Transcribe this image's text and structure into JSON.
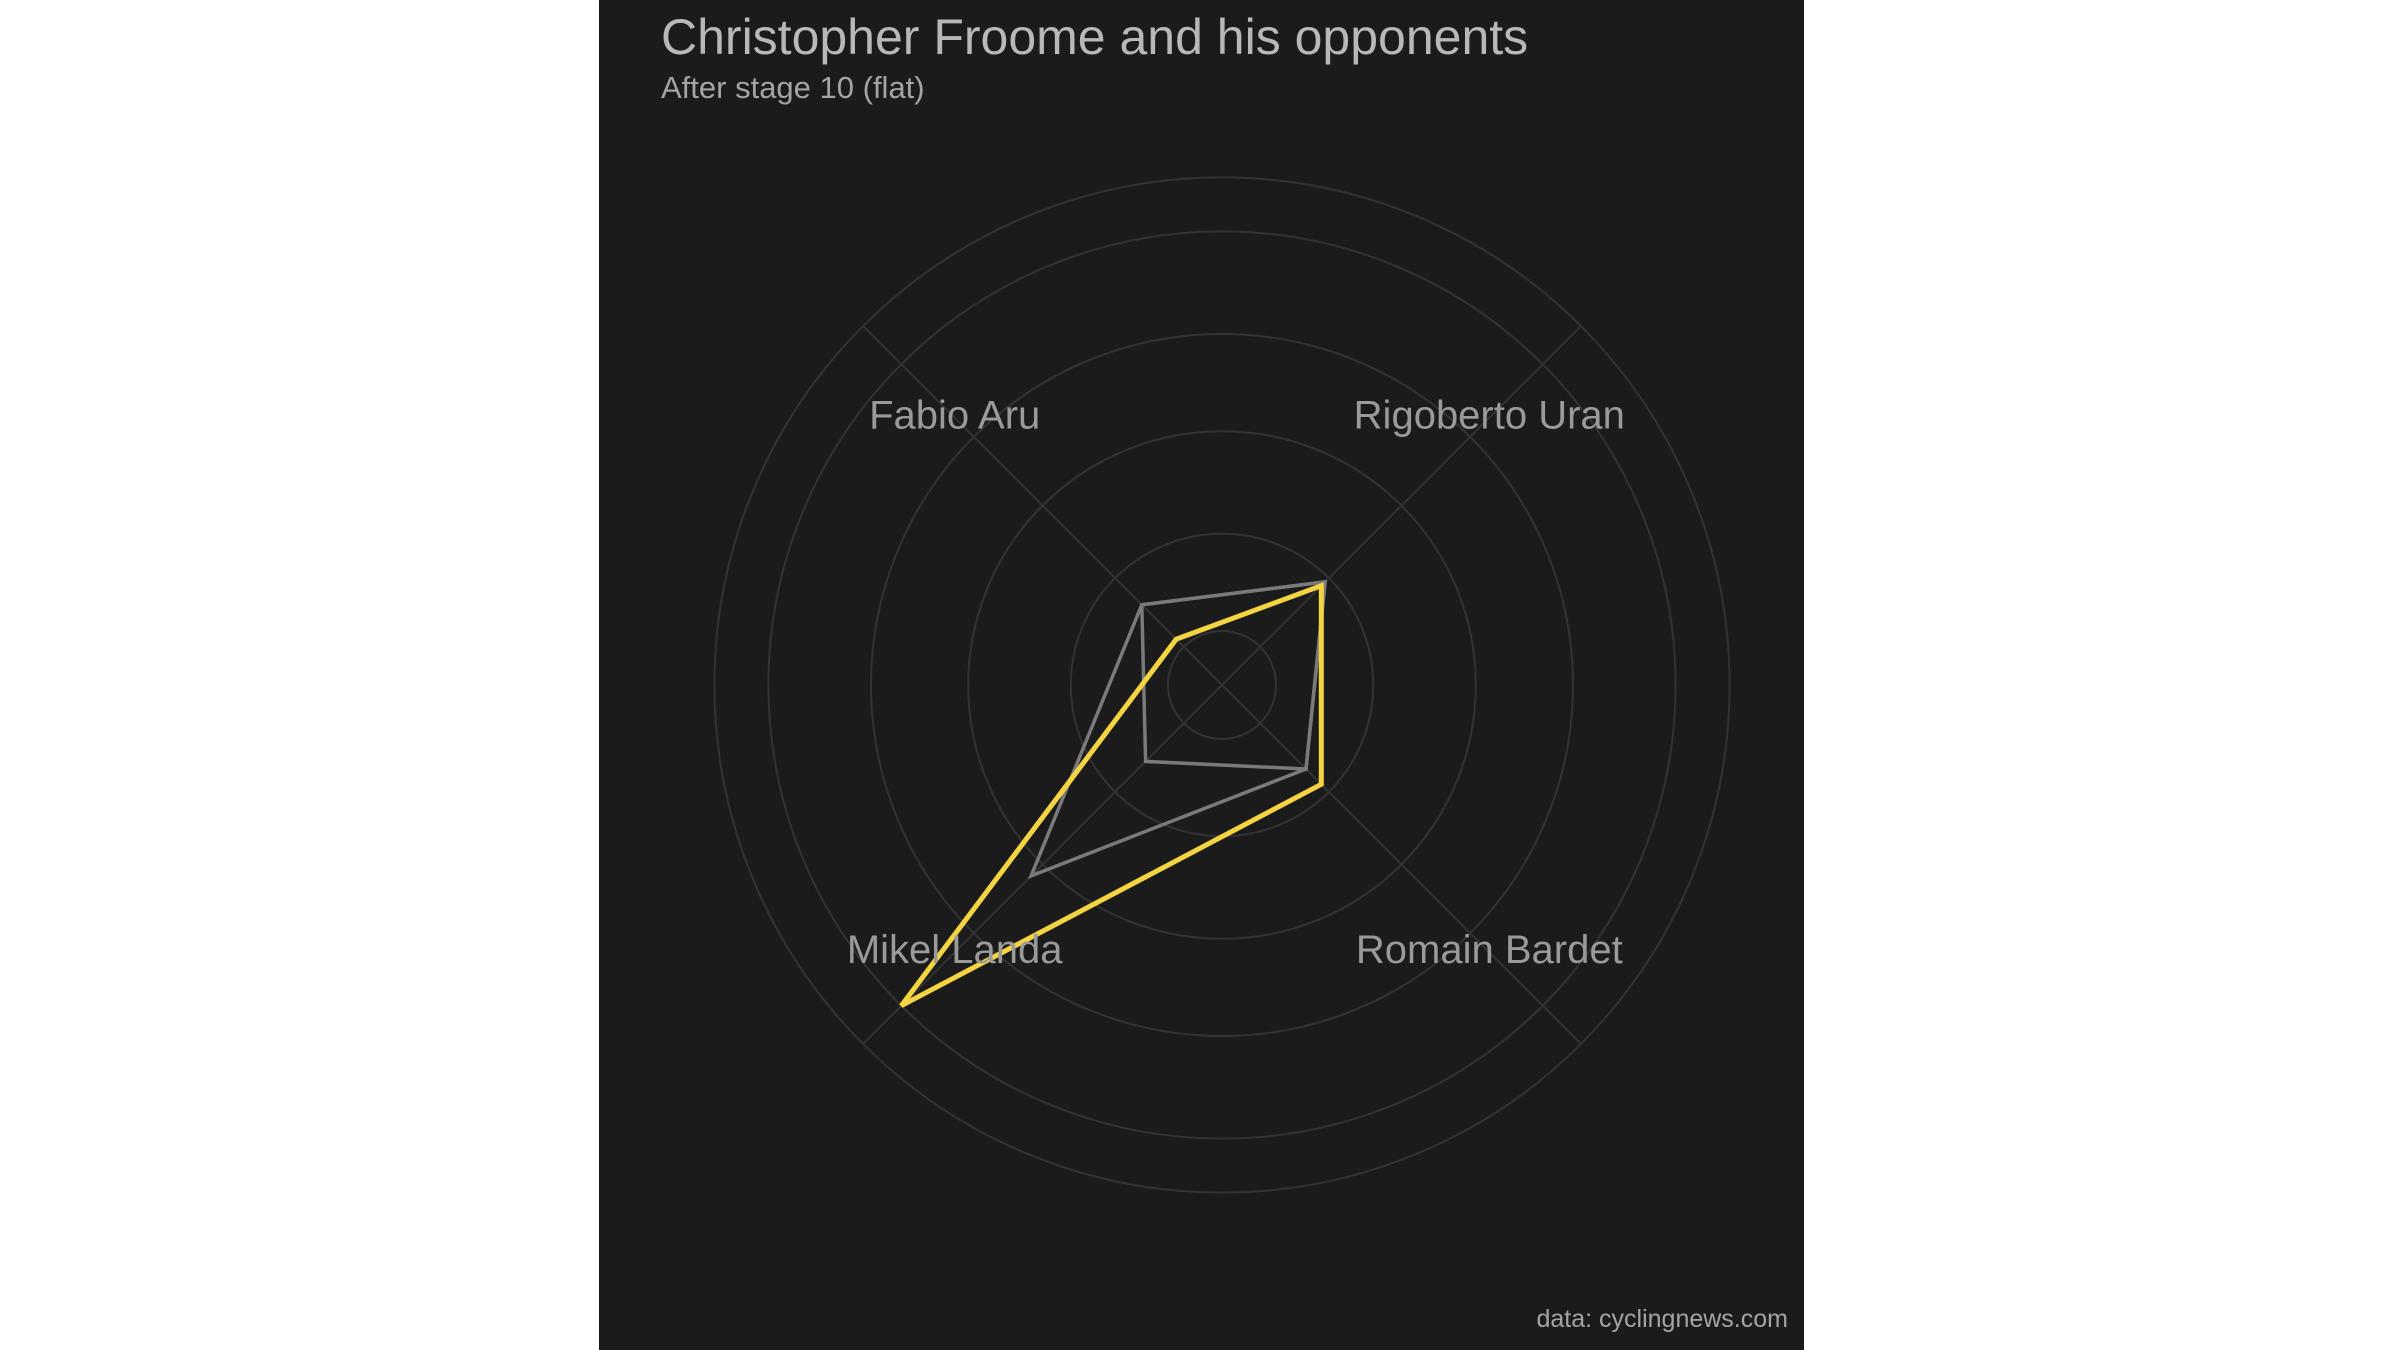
{
  "title": "Christopher Froome and his opponents",
  "subtitle": "After stage 10 (flat)",
  "caption": "data: cyclingnews.com",
  "colors": {
    "background": "#1b1b1b",
    "grid": "#333333",
    "highlight": "#f5d442",
    "other": "#7a7a7a",
    "label": "#9a9a9a"
  },
  "chart_data": {
    "type": "radar",
    "title": "Christopher Froome and his opponents",
    "subtitle": "After stage 10 (flat)",
    "axes": [
      "Rigoberto Uran",
      "Romain Bardet",
      "Mikel Landa",
      "Fabio Aru"
    ],
    "rlim": [
      0,
      1
    ],
    "rings": [
      0.1,
      0.28,
      0.47,
      0.65,
      0.84,
      0.94
    ],
    "grid": true,
    "legend": "none",
    "series": [
      {
        "highlight": false,
        "values": [
          0.27,
          0.22,
          0.2,
          0.21
        ]
      },
      {
        "highlight": false,
        "values": [
          0.27,
          0.22,
          0.5,
          0.21
        ]
      },
      {
        "highlight": true,
        "values": [
          0.26,
          0.26,
          0.84,
          0.12
        ]
      }
    ]
  }
}
